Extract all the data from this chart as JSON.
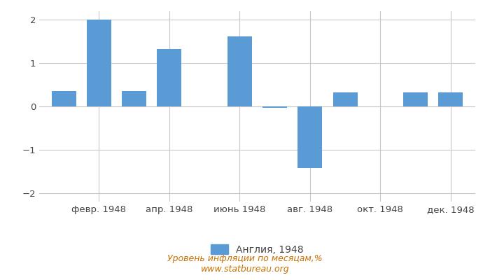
{
  "months_x": [
    1,
    2,
    3,
    4,
    5,
    6,
    7,
    8,
    9,
    10,
    11,
    12
  ],
  "values": [
    0.35,
    2.0,
    0.35,
    1.33,
    0.0,
    1.62,
    -0.04,
    -1.43,
    0.33,
    0.0,
    0.33,
    0.33
  ],
  "tick_labels": [
    "февр. 1948",
    "апр. 1948",
    "июнь 1948",
    "авг. 1948",
    "окт. 1948",
    "дек. 1948"
  ],
  "tick_positions": [
    2,
    4,
    6,
    8,
    10,
    12
  ],
  "bar_color": "#5b9bd5",
  "legend_label": "Англия, 1948",
  "ylim": [
    -2.2,
    2.2
  ],
  "yticks": [
    -2,
    -1,
    0,
    1,
    2
  ],
  "subtitle": "Уровень инфляции по месяцам,%",
  "watermark": "www.statbureau.org",
  "background_color": "#ffffff",
  "grid_color": "#c8c8c8",
  "tick_fontsize": 9.5,
  "legend_fontsize": 10,
  "subtitle_color": "#c87000",
  "bar_width": 0.7
}
